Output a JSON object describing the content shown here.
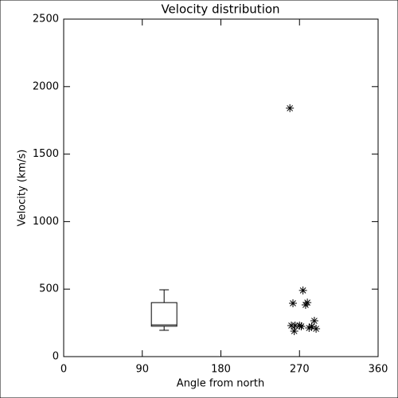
{
  "chart_data": {
    "type": "scatter",
    "title": "Velocity distribution",
    "x_label": "Angle from north",
    "y_label": "Velocity (km/s)",
    "xlim": [
      0,
      360
    ],
    "xticks": [
      0,
      90,
      180,
      270,
      360
    ],
    "ylim": [
      0,
      2500
    ],
    "yticks": [
      0,
      500,
      1000,
      1500,
      2000,
      2500
    ],
    "color": "#000000",
    "x": [
      259,
      262.5,
      274,
      277,
      279,
      287,
      260.7,
      265,
      270,
      264,
      272,
      281,
      284,
      289
    ],
    "values": [
      1840,
      395,
      490,
      383,
      400,
      265,
      230,
      230,
      230,
      189,
      224,
      212,
      224,
      206
    ],
    "box": {
      "x": 115,
      "whisker_low": 195,
      "q1": 225,
      "median": 235,
      "q3": 400,
      "whisker_high": 495
    }
  }
}
